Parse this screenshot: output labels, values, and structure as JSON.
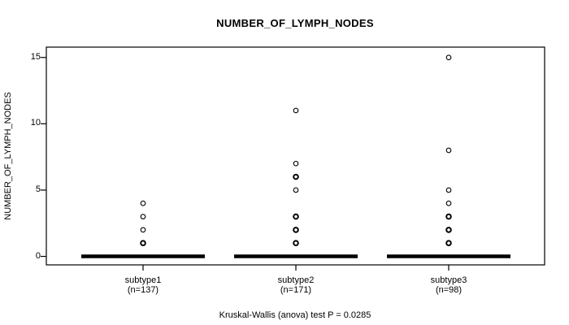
{
  "chart_data": {
    "type": "boxplot",
    "title": "NUMBER_OF_LYMPH_NODES",
    "ylabel": "NUMBER_OF_LYMPH_NODES",
    "footnote": "Kruskal-Wallis (anova) test P = 0.0285",
    "yticks": [
      0,
      5,
      10,
      15
    ],
    "ylim": [
      -0.64,
      15.78
    ],
    "grid": false,
    "legend": false,
    "groups": [
      {
        "label": "subtype1",
        "n": 137,
        "n_label": "(n=137)",
        "median": 0,
        "q1": 0,
        "q3": 0,
        "outliers": [
          1,
          2,
          3,
          4
        ],
        "outliers_heavy": [
          1
        ]
      },
      {
        "label": "subtype2",
        "n": 171,
        "n_label": "(n=171)",
        "median": 0,
        "q1": 0,
        "q3": 0,
        "outliers": [
          1,
          2,
          3,
          5,
          6,
          7,
          11
        ],
        "outliers_heavy": [
          1,
          2,
          3,
          6
        ]
      },
      {
        "label": "subtype3",
        "n": 98,
        "n_label": "(n=98)",
        "median": 0,
        "q1": 0,
        "q3": 0,
        "outliers": [
          1,
          2,
          3,
          4,
          5,
          8,
          15
        ],
        "outliers_heavy": [
          1,
          2,
          3
        ]
      }
    ],
    "colors": {
      "foreground": "#000000",
      "background": "#ffffff"
    }
  }
}
